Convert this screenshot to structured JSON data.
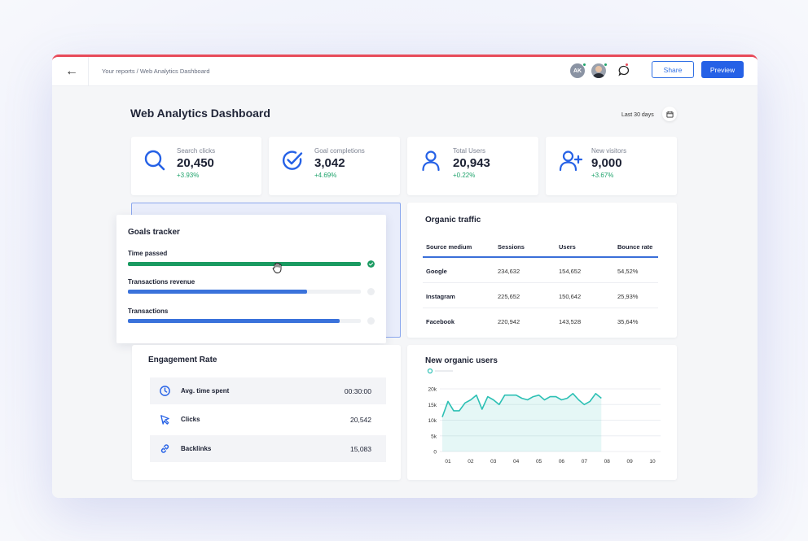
{
  "topbar": {
    "back_icon": "arrow-left-icon",
    "breadcrumb": "Your reports / Web Analytics Dashboard",
    "avatar_initials": "AK",
    "share_label": "Share",
    "preview_label": "Preview"
  },
  "header": {
    "title": "Web Analytics Dashboard",
    "date_range": "Last 30 days"
  },
  "kpis": [
    {
      "label": "Search clicks",
      "value": "20,450",
      "delta": "+3.93%",
      "icon": "search-icon"
    },
    {
      "label": "Goal completions",
      "value": "3,042",
      "delta": "+4.69%",
      "icon": "check-circle-icon"
    },
    {
      "label": "Total Users",
      "value": "20,943",
      "delta": "+0.22%",
      "icon": "user-icon"
    },
    {
      "label": "New visitors",
      "value": "9,000",
      "delta": "+3.67%",
      "icon": "user-plus-icon"
    }
  ],
  "goals": {
    "title": "Goals tracker",
    "items": [
      {
        "label": "Time passed",
        "progress": 1.0,
        "color": "#1a9a61",
        "done": true
      },
      {
        "label": "Transactions revenue",
        "progress": 0.77,
        "color": "#3a72db",
        "done": false
      },
      {
        "label": "Transactions",
        "progress": 0.91,
        "color": "#3a72db",
        "done": false
      }
    ]
  },
  "organic": {
    "title": "Organic traffic",
    "headers": [
      "Source medium",
      "Sessions",
      "Users",
      "Bounce rate"
    ],
    "rows": [
      [
        "Google",
        "234,632",
        "154,652",
        "54,52%"
      ],
      [
        "Instagram",
        "225,652",
        "150,642",
        "25,93%"
      ],
      [
        "Facebook",
        "220,942",
        "143,528",
        "35,64%"
      ]
    ]
  },
  "engagement": {
    "title": "Engagement Rate",
    "rows": [
      {
        "label": "Avg. time spent",
        "value": "00:30:00",
        "icon": "clock-icon"
      },
      {
        "label": "Clicks",
        "value": "20,542",
        "icon": "pointer-icon"
      },
      {
        "label": "Backlinks",
        "value": "15,083",
        "icon": "link-icon"
      }
    ]
  },
  "chart_data": {
    "type": "area",
    "title": "New organic users",
    "x": [
      "01",
      "02",
      "03",
      "04",
      "05",
      "06",
      "07",
      "08",
      "09",
      "10"
    ],
    "ytick_labels": [
      "0",
      "5k",
      "10k",
      "15k",
      "20k"
    ],
    "ylim": [
      0,
      20000
    ],
    "series": [
      {
        "color": "#2cc0b4",
        "points": [
          [
            0.75,
            11000
          ],
          [
            1.0,
            16000
          ],
          [
            1.25,
            13000
          ],
          [
            1.5,
            13000
          ],
          [
            1.75,
            15500
          ],
          [
            2.0,
            16500
          ],
          [
            2.25,
            18000
          ],
          [
            2.5,
            13500
          ],
          [
            2.75,
            17500
          ],
          [
            3.0,
            16500
          ],
          [
            3.25,
            15000
          ],
          [
            3.5,
            18000
          ],
          [
            3.75,
            18000
          ],
          [
            4.0,
            18000
          ],
          [
            4.25,
            17000
          ],
          [
            4.5,
            16500
          ],
          [
            4.75,
            17500
          ],
          [
            5.0,
            18000
          ],
          [
            5.25,
            16500
          ],
          [
            5.5,
            17500
          ],
          [
            5.75,
            17500
          ],
          [
            6.0,
            16500
          ],
          [
            6.25,
            17000
          ],
          [
            6.5,
            18500
          ],
          [
            6.75,
            16500
          ],
          [
            7.0,
            15000
          ],
          [
            7.25,
            16000
          ],
          [
            7.5,
            18500
          ],
          [
            7.75,
            17000
          ]
        ]
      }
    ],
    "grid": true,
    "legend": "top-left"
  },
  "colors": {
    "accent": "#2561e6",
    "positive": "#1ea36b",
    "chart_line": "#2cc0b4"
  }
}
